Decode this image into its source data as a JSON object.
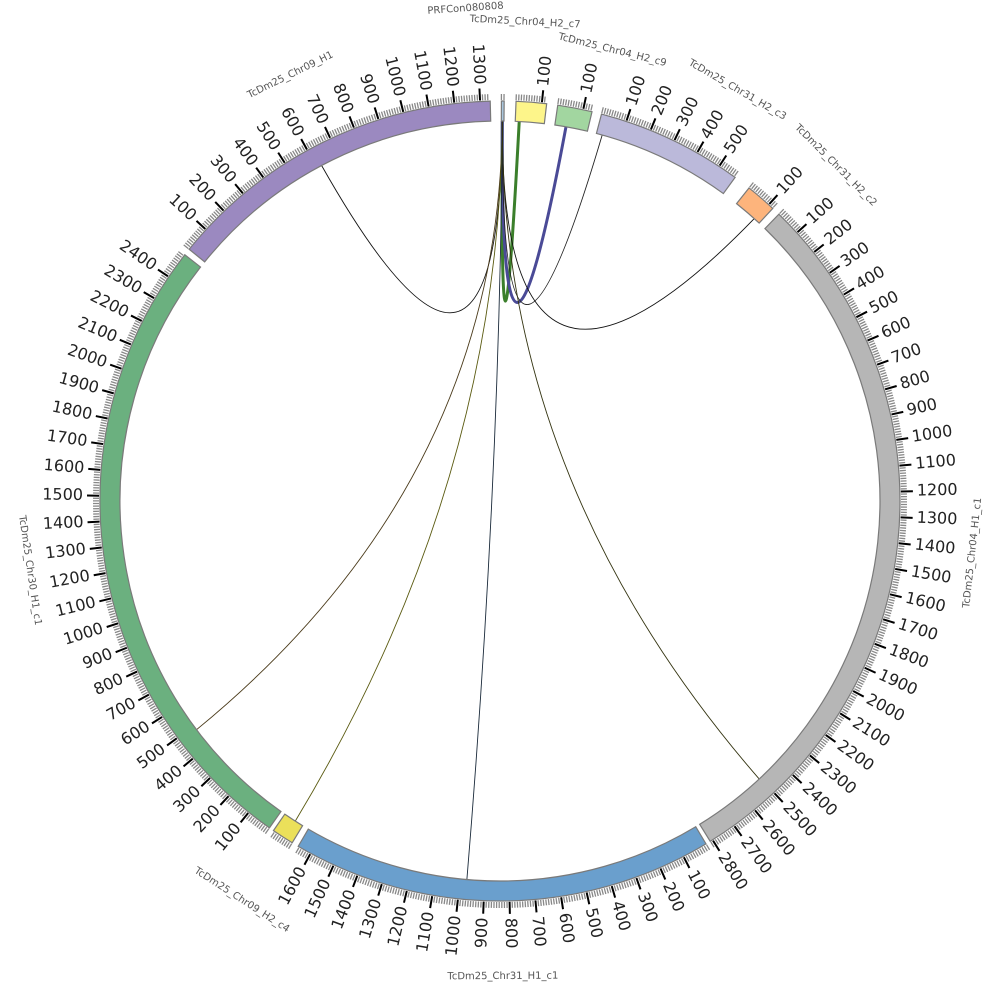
{
  "segments": [
    {
      "id": "prfcon",
      "name": "PRFCon080808",
      "color": "#a9c6dd",
      "ticks": []
    },
    {
      "id": "chr04_h2_c7",
      "name": "TcDm25_Chr04_H2_c7",
      "color": "#fdf58a",
      "ticks": [
        "100"
      ]
    },
    {
      "id": "chr04_h2_c9",
      "name": "TcDm25_Chr04_H2_c9",
      "color": "#a2d6a0",
      "ticks": [
        "100"
      ]
    },
    {
      "id": "chr31_h2_c3",
      "name": "TcDm25_Chr31_H2_c3",
      "color": "#bbb9da",
      "ticks": [
        "100",
        "200",
        "300",
        "400",
        "500"
      ]
    },
    {
      "id": "chr31_h2_c2",
      "name": "TcDm25_Chr31_H2_c2",
      "color": "#fdb47c",
      "ticks": [
        "100"
      ]
    },
    {
      "id": "chr04_h1_c1",
      "name": "TcDm25_Chr04_H1_c1",
      "color": "#b6b6b6",
      "ticks": [
        "100",
        "200",
        "300",
        "400",
        "500",
        "600",
        "700",
        "800",
        "900",
        "1000",
        "1100",
        "1200",
        "1300",
        "1400",
        "1500",
        "1600",
        "1700",
        "1800",
        "1900",
        "2000",
        "2100",
        "2200",
        "2300",
        "2400",
        "2500",
        "2600",
        "2700",
        "2800"
      ]
    },
    {
      "id": "chr31_h1_c1",
      "name": "TcDm25_Chr31_H1_c1",
      "color": "#6a9fcd",
      "ticks": [
        "100",
        "200",
        "300",
        "400",
        "500",
        "600",
        "700",
        "800",
        "900",
        "1000",
        "1100",
        "1200",
        "1300",
        "1400",
        "1500",
        "1600"
      ]
    },
    {
      "id": "chr09_h2_c4",
      "name": "TcDm25_Chr09_H2_c4",
      "color": "#ebe05a",
      "ticks": []
    },
    {
      "id": "chr30_h1_c1",
      "name": "TcDm25_Chr30_H1_c1",
      "color": "#6bb07f",
      "ticks": [
        "100",
        "200",
        "300",
        "400",
        "500",
        "600",
        "700",
        "800",
        "900",
        "1000",
        "1100",
        "1200",
        "1300",
        "1400",
        "1500",
        "1600",
        "1700",
        "1800",
        "1900",
        "2000",
        "2100",
        "2200",
        "2300",
        "2400"
      ]
    },
    {
      "id": "chr09_h1",
      "name": "TcDm25_Chr09_H1",
      "color": "#9b89c0",
      "ticks": [
        "100",
        "200",
        "300",
        "400",
        "500",
        "600",
        "700",
        "800",
        "900",
        "1000",
        "1100",
        "1200",
        "1300"
      ]
    }
  ],
  "links": [
    {
      "from": "prfcon",
      "to": "chr09_h1",
      "color": "#111111"
    },
    {
      "from": "prfcon",
      "to": "chr04_h2_c7",
      "color": "#3b7f2b"
    },
    {
      "from": "prfcon",
      "to": "chr04_h2_c9",
      "color": "#4a4a96"
    },
    {
      "from": "prfcon",
      "to": "chr31_h2_c3",
      "color": "#222222"
    },
    {
      "from": "prfcon",
      "to": "chr31_h2_c2",
      "color": "#111111"
    },
    {
      "from": "prfcon",
      "to": "chr30_h1_c1",
      "color": "#4a3a1a"
    },
    {
      "from": "prfcon",
      "to": "chr09_h2_c4",
      "color": "#5a5a10"
    },
    {
      "from": "prfcon",
      "to": "chr31_h1_c1",
      "color": "#1a2a3a"
    },
    {
      "from": "prfcon",
      "to": "chr04_h1_c1",
      "color": "#333310"
    }
  ]
}
